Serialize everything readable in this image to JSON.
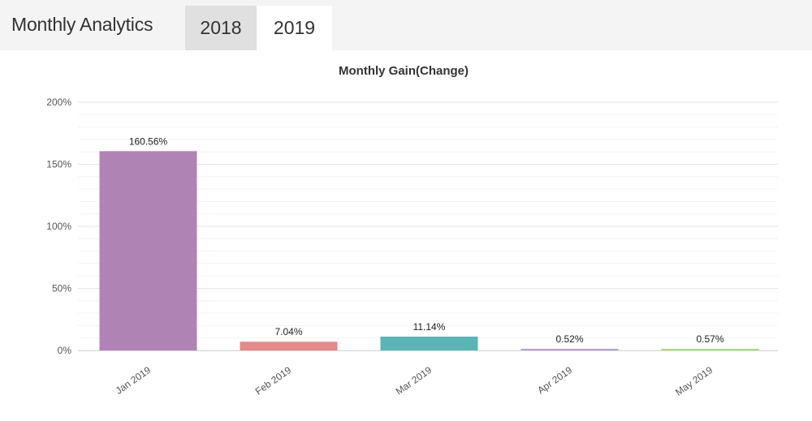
{
  "header": {
    "title": "Monthly Analytics",
    "tabs": [
      {
        "label": "2018",
        "active": false
      },
      {
        "label": "2019",
        "active": true
      }
    ]
  },
  "chart_data": {
    "type": "bar",
    "title": "Monthly Gain(Change)",
    "xlabel": "",
    "ylabel": "",
    "categories": [
      "Jan 2019",
      "Feb 2019",
      "Mar 2019",
      "Apr 2019",
      "May 2019"
    ],
    "values": [
      160.56,
      7.04,
      11.14,
      0.52,
      0.57
    ],
    "data_labels": [
      "160.56%",
      "7.04%",
      "11.14%",
      "0.52%",
      "0.57%"
    ],
    "colors": [
      "#b083b5",
      "#e48a8a",
      "#5bb5b5",
      "#b8a0d0",
      "#a8d88c"
    ],
    "ylim": [
      0,
      200
    ],
    "yticks": [
      0,
      50,
      100,
      150,
      200
    ],
    "ytick_labels": [
      "0%",
      "50%",
      "100%",
      "150%",
      "200%"
    ],
    "grid": true,
    "legend": "none"
  }
}
